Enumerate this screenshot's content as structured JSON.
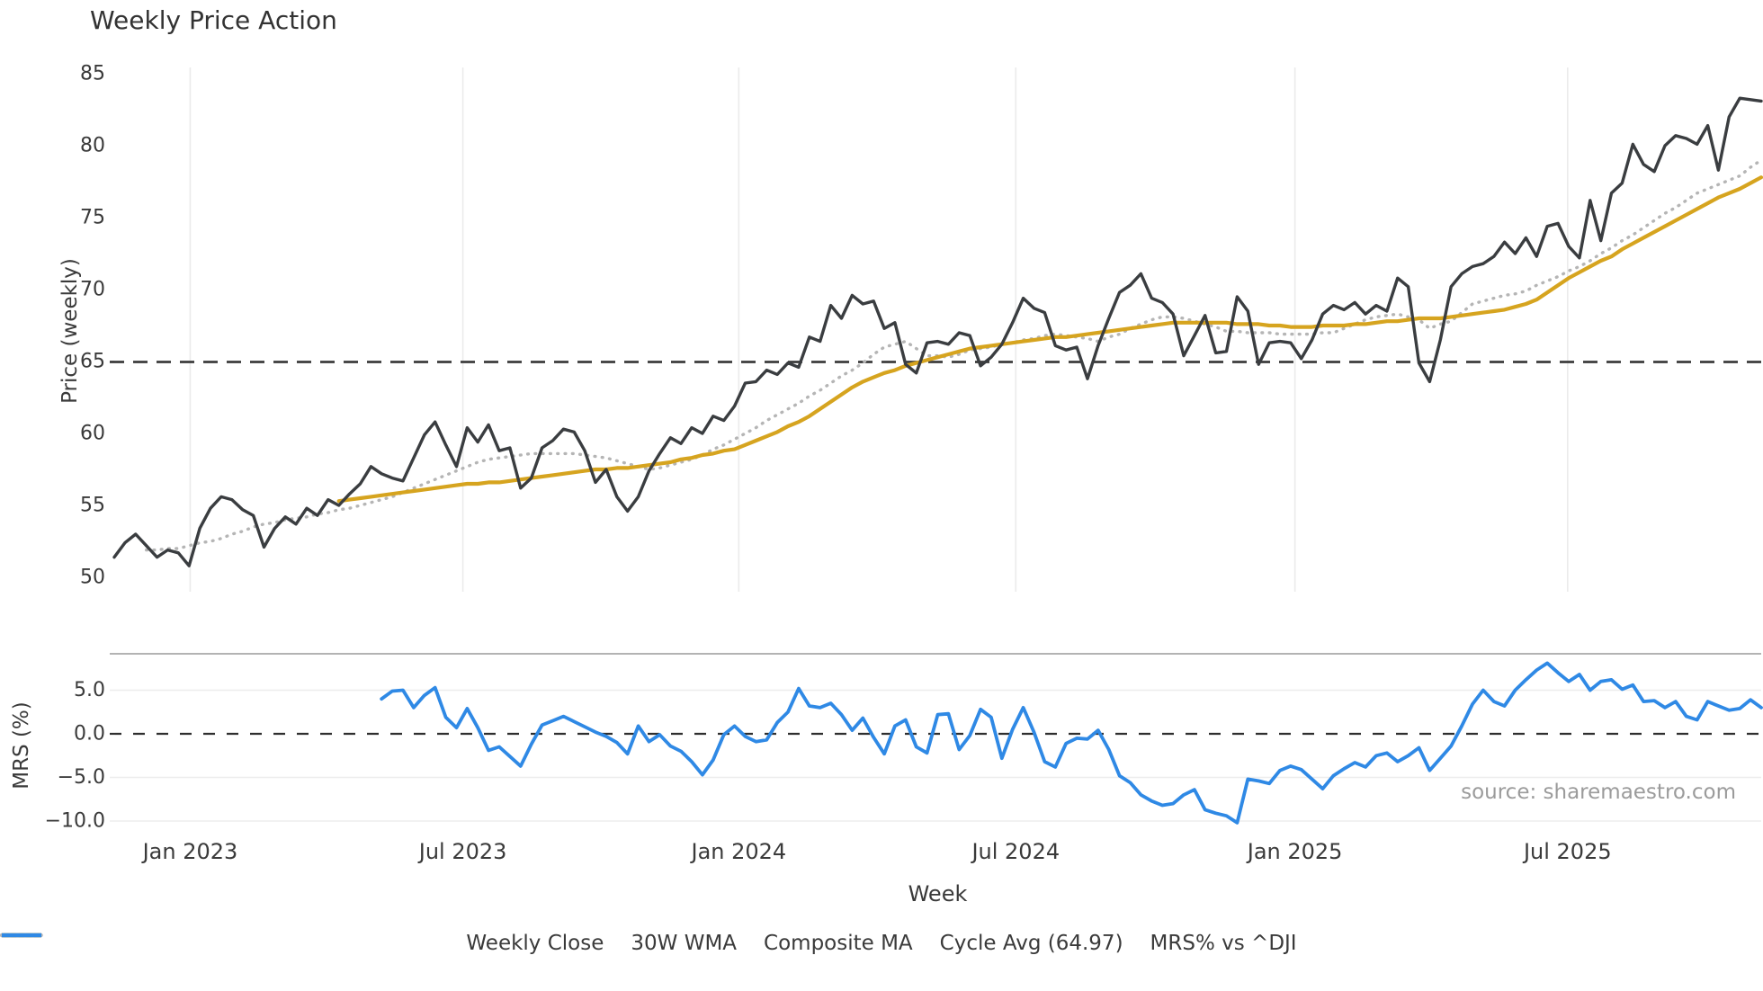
{
  "title": "Weekly Price Action",
  "source": "source: sharemaestro.com",
  "axes": {
    "price_label": "Price (weekly)",
    "mrs_label": "MRS (%)",
    "x_label": "Week"
  },
  "chart_data": {
    "type": "line",
    "x_unit": "week",
    "weeks_total": 154,
    "grid": "vertical-top-panel, horizontal-bottom-panel",
    "legend_position": "bottom-center",
    "x_ticks": [
      {
        "label": "Jan 2023",
        "week": 7.1
      },
      {
        "label": "Jul 2023",
        "week": 32.6
      },
      {
        "label": "Jan 2024",
        "week": 58.4
      },
      {
        "label": "Jul 2024",
        "week": 84.3
      },
      {
        "label": "Jan 2025",
        "week": 110.4
      },
      {
        "label": "Jul 2025",
        "week": 135.9
      }
    ],
    "price_panel": {
      "ylabel": "Price (weekly)",
      "ylim": [
        48.9,
        85.5
      ],
      "y_ticks": [
        85,
        80,
        75,
        70,
        65,
        60,
        55,
        50
      ],
      "cycle_avg": 64.97,
      "series": [
        {
          "name": "Weekly Close",
          "color": "#3a3d40",
          "style": "solid",
          "width": 3.4,
          "start_week": 0,
          "values": [
            51.4,
            52.4,
            53.0,
            52.2,
            51.4,
            51.9,
            51.7,
            50.8,
            53.4,
            54.8,
            55.6,
            55.4,
            54.7,
            54.3,
            52.1,
            53.4,
            54.2,
            53.7,
            54.8,
            54.3,
            55.4,
            55.0,
            55.8,
            56.5,
            57.7,
            57.2,
            56.9,
            56.7,
            58.3,
            59.9,
            60.8,
            59.2,
            57.7,
            60.4,
            59.4,
            60.6,
            58.8,
            59.0,
            56.2,
            56.9,
            59.0,
            59.5,
            60.3,
            60.1,
            58.8,
            56.6,
            57.5,
            55.6,
            54.6,
            55.6,
            57.4,
            58.6,
            59.7,
            59.3,
            60.4,
            60.0,
            61.2,
            60.9,
            61.9,
            63.5,
            63.6,
            64.4,
            64.1,
            64.9,
            64.6,
            66.7,
            66.4,
            68.9,
            68.0,
            69.6,
            69.0,
            69.2,
            67.3,
            67.7,
            64.8,
            64.2,
            66.3,
            66.4,
            66.2,
            67.0,
            66.8,
            64.7,
            65.3,
            66.2,
            67.7,
            69.4,
            68.7,
            68.4,
            66.1,
            65.8,
            66.0,
            63.8,
            66.1,
            68.0,
            69.8,
            70.3,
            71.1,
            69.4,
            69.1,
            68.3,
            65.4,
            66.8,
            68.2,
            65.6,
            65.7,
            69.5,
            68.5,
            64.8,
            66.3,
            66.4,
            66.3,
            65.2,
            66.5,
            68.3,
            68.9,
            68.6,
            69.1,
            68.3,
            68.9,
            68.5,
            70.8,
            70.2,
            64.9,
            63.6,
            66.5,
            70.2,
            71.1,
            71.6,
            71.8,
            72.3,
            73.3,
            72.5,
            73.6,
            72.3,
            74.4,
            74.6,
            73.0,
            72.2,
            76.2,
            73.4,
            76.7,
            77.4,
            80.1,
            78.7,
            78.2,
            80.0,
            80.7,
            80.5,
            80.1,
            81.4,
            78.3,
            82.0,
            83.3,
            83.2,
            83.1
          ]
        },
        {
          "name": "30W WMA",
          "color": "#d6a41f",
          "style": "solid",
          "width": 4.2,
          "start_week": 21,
          "values": [
            55.3,
            55.4,
            55.5,
            55.6,
            55.7,
            55.8,
            55.9,
            56.0,
            56.1,
            56.2,
            56.3,
            56.4,
            56.5,
            56.5,
            56.6,
            56.6,
            56.7,
            56.8,
            56.9,
            57.0,
            57.1,
            57.2,
            57.3,
            57.4,
            57.5,
            57.5,
            57.6,
            57.6,
            57.7,
            57.8,
            57.9,
            58.0,
            58.2,
            58.3,
            58.5,
            58.6,
            58.8,
            58.9,
            59.2,
            59.5,
            59.8,
            60.1,
            60.5,
            60.8,
            61.2,
            61.7,
            62.2,
            62.7,
            63.2,
            63.6,
            63.9,
            64.2,
            64.4,
            64.7,
            64.9,
            65.1,
            65.3,
            65.5,
            65.7,
            65.9,
            66.0,
            66.1,
            66.2,
            66.3,
            66.4,
            66.5,
            66.6,
            66.7,
            66.7,
            66.8,
            66.9,
            67.0,
            67.1,
            67.2,
            67.3,
            67.4,
            67.5,
            67.6,
            67.7,
            67.7,
            67.7,
            67.7,
            67.7,
            67.7,
            67.6,
            67.6,
            67.6,
            67.5,
            67.5,
            67.4,
            67.4,
            67.4,
            67.5,
            67.5,
            67.5,
            67.6,
            67.6,
            67.7,
            67.8,
            67.8,
            67.9,
            68.0,
            68.0,
            68.0,
            68.1,
            68.2,
            68.3,
            68.4,
            68.5,
            68.6,
            68.8,
            69.0,
            69.3,
            69.8,
            70.3,
            70.8,
            71.2,
            71.6,
            72.0,
            72.3,
            72.8,
            73.2,
            73.6,
            74.0,
            74.4,
            74.8,
            75.2,
            75.6,
            76.0,
            76.4,
            76.7,
            77.0,
            77.4,
            77.8
          ]
        },
        {
          "name": "Composite MA",
          "color": "#b5b5b5",
          "style": "dotted",
          "width": 3.4,
          "start_week": 3,
          "values": [
            51.9,
            51.9,
            52.0,
            52.0,
            52.2,
            52.4,
            52.5,
            52.7,
            53.0,
            53.2,
            53.5,
            53.7,
            53.8,
            54.0,
            54.1,
            54.2,
            54.4,
            54.5,
            54.7,
            54.8,
            55.0,
            55.2,
            55.4,
            55.6,
            55.9,
            56.2,
            56.5,
            56.8,
            57.1,
            57.4,
            57.7,
            58.0,
            58.2,
            58.3,
            58.4,
            58.5,
            58.6,
            58.6,
            58.6,
            58.6,
            58.6,
            58.5,
            58.4,
            58.3,
            58.1,
            57.9,
            57.7,
            57.5,
            57.6,
            57.8,
            58.0,
            58.2,
            58.5,
            58.9,
            59.2,
            59.6,
            60.0,
            60.4,
            60.9,
            61.3,
            61.7,
            62.1,
            62.6,
            63.0,
            63.5,
            64.0,
            64.4,
            64.9,
            65.5,
            66.0,
            66.2,
            66.4,
            65.9,
            65.4,
            65.4,
            65.3,
            65.5,
            65.8,
            65.9,
            66.0,
            66.2,
            66.3,
            66.5,
            66.6,
            66.8,
            66.9,
            66.8,
            66.7,
            66.6,
            66.4,
            66.7,
            66.9,
            67.3,
            67.6,
            67.9,
            68.1,
            68.1,
            68.0,
            67.8,
            67.6,
            67.4,
            67.1,
            67.1,
            67.0,
            67.0,
            67.0,
            66.9,
            66.9,
            66.9,
            66.9,
            67.0,
            67.0,
            67.3,
            67.6,
            67.9,
            68.1,
            68.2,
            68.3,
            68.1,
            67.9,
            67.3,
            67.6,
            67.8,
            68.4,
            69.0,
            69.2,
            69.4,
            69.6,
            69.7,
            69.9,
            70.3,
            70.6,
            70.9,
            71.3,
            71.6,
            72.0,
            72.5,
            72.9,
            73.4,
            73.8,
            74.3,
            74.8,
            75.3,
            75.7,
            76.2,
            76.7,
            77.0,
            77.3,
            77.6,
            77.9,
            78.5,
            79.0
          ]
        }
      ]
    },
    "mrs_panel": {
      "ylabel": "MRS (%)",
      "ylim": [
        -12.3,
        9.2
      ],
      "y_ticks": [
        {
          "label": "5.0",
          "value": 5
        },
        {
          "label": "0.0",
          "value": 0
        },
        {
          "label": "−5.0",
          "value": -5
        },
        {
          "label": "−10.0",
          "value": -10
        }
      ],
      "zero_line": 0,
      "series": [
        {
          "name": "MRS% vs ^DJI",
          "color": "#2f89e5",
          "style": "solid",
          "width": 3.8,
          "start_week": 25,
          "values": [
            4.0,
            4.9,
            5.0,
            3.0,
            4.4,
            5.3,
            1.9,
            0.7,
            2.9,
            0.7,
            -1.9,
            -1.5,
            -2.6,
            -3.7,
            -1.2,
            1.0,
            1.5,
            2.0,
            1.4,
            0.8,
            0.2,
            -0.3,
            -1.0,
            -2.3,
            0.9,
            -0.9,
            -0.1,
            -1.4,
            -2.0,
            -3.2,
            -4.7,
            -3.0,
            -0.1,
            0.9,
            -0.3,
            -0.9,
            -0.7,
            1.3,
            2.5,
            5.2,
            3.2,
            3.0,
            3.5,
            2.2,
            0.4,
            1.8,
            -0.4,
            -2.3,
            0.9,
            1.6,
            -1.5,
            -2.2,
            2.2,
            2.3,
            -1.8,
            -0.2,
            2.8,
            1.9,
            -2.8,
            0.5,
            3.0,
            0.2,
            -3.2,
            -3.8,
            -1.1,
            -0.5,
            -0.6,
            0.4,
            -1.8,
            -4.8,
            -5.6,
            -7.0,
            -7.7,
            -8.2,
            -8.0,
            -7.0,
            -6.4,
            -8.7,
            -9.1,
            -9.4,
            -10.2,
            -5.2,
            -5.4,
            -5.7,
            -4.2,
            -3.7,
            -4.1,
            -5.2,
            -6.3,
            -4.8,
            -4.0,
            -3.3,
            -3.8,
            -2.5,
            -2.2,
            -3.2,
            -2.5,
            -1.6,
            -4.2,
            -2.8,
            -1.4,
            0.9,
            3.4,
            5.0,
            3.7,
            3.2,
            5.0,
            6.2,
            7.3,
            8.1,
            7.0,
            6.0,
            6.8,
            5.0,
            6.0,
            6.2,
            5.1,
            5.6,
            3.7,
            3.8,
            3.0,
            3.7,
            2.0,
            1.6,
            3.7,
            3.2,
            2.7,
            2.9,
            3.9,
            3.0
          ]
        }
      ]
    },
    "legend": [
      {
        "label": "Weekly Close",
        "style": "solid",
        "color": "#3a3d40"
      },
      {
        "label": "30W WMA",
        "style": "solid",
        "color": "#d6a41f"
      },
      {
        "label": "Composite MA",
        "style": "dotted",
        "color": "#b5b5b5"
      },
      {
        "label": "Cycle Avg (64.97)",
        "style": "dashed",
        "color": "#3c3c3c"
      },
      {
        "label": "MRS% vs ^DJI",
        "style": "solid",
        "color": "#2f89e5"
      }
    ]
  }
}
